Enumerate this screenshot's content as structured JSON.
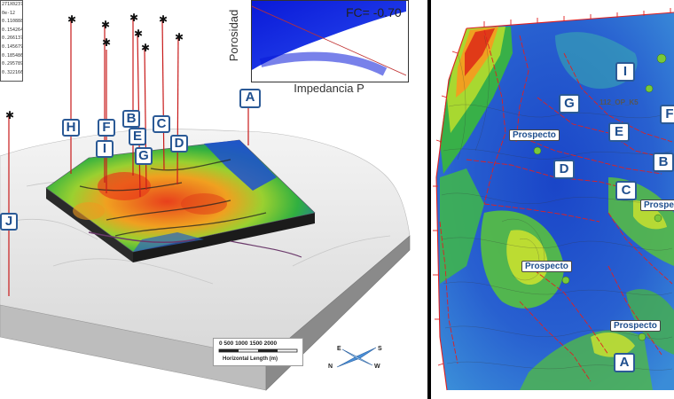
{
  "legend_values": [
    "271X0237",
    "0e-12",
    "0.1108882",
    "0.154264",
    "0.2661375",
    "0.145679",
    "0.185486",
    "0.2957897",
    "0.3221664"
  ],
  "scatter": {
    "fc_label": "FC= -0.70",
    "x_axis_label": "Impedancia P",
    "y_axis_label": "Porosidad"
  },
  "wells_3d": [
    "A",
    "B",
    "C",
    "D",
    "E",
    "F",
    "G",
    "H",
    "I",
    "J"
  ],
  "scale_bar": {
    "ticks": "0   500  1000  1500 2000",
    "caption": "Horizontal Length (m)"
  },
  "compass": {
    "e": "E",
    "s": "S",
    "n": "N",
    "w": "W"
  },
  "map_wells": [
    "I",
    "G",
    "E",
    "F",
    "D",
    "B",
    "C",
    "A"
  ],
  "map_center_label": "112_OP_K5",
  "prospect_label": "Prospecto",
  "prospects": [
    "Prospecto",
    "Prospecto",
    "Prospecto",
    "Prospecto"
  ],
  "colors": {
    "well_border": "#2b5a96",
    "fault_red": "#e02020",
    "cube_high": "#e03010",
    "cube_low": "#2050c0"
  }
}
